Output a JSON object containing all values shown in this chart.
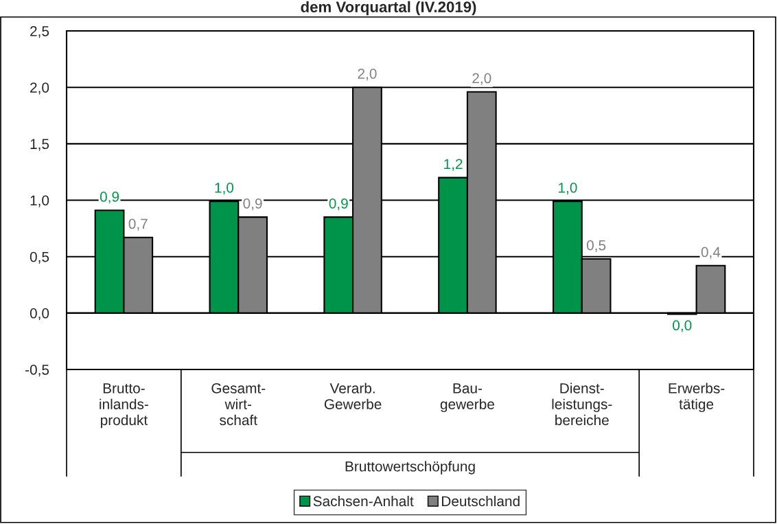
{
  "chart_data": {
    "type": "bar",
    "title": "dem Vorquartal (IV.2019)",
    "categories": [
      "Brutto-\ninlands-\nprodukt",
      "Gesamt-\nwirt-\nschaft",
      "Verarb.\nGewerbe",
      "Bau-\ngewerbe",
      "Dienst-\nleistungs-\nbereiche",
      "Erwerbs-\ntätige"
    ],
    "series": [
      {
        "name": "Sachsen-Anhalt",
        "color": "#00944a",
        "values": [
          0.91,
          0.99,
          0.85,
          1.2,
          0.99,
          -0.01
        ],
        "value_labels": [
          "0,9",
          "1,0",
          "0,9",
          "1,2",
          "1,0",
          "0,0"
        ]
      },
      {
        "name": "Deutschland",
        "color": "#808080",
        "values": [
          0.67,
          0.85,
          2.0,
          1.96,
          0.48,
          0.42
        ],
        "value_labels": [
          "0,7",
          "0,9",
          "2,0",
          "2,0",
          "0,5",
          "0,4"
        ]
      }
    ],
    "annotations": [
      "Bruttowertschöpfung"
    ],
    "ylim": [
      -0.5,
      2.5
    ],
    "yticks": [
      {
        "value": -0.5,
        "label": "-0,5"
      },
      {
        "value": 0.0,
        "label": "0,0"
      },
      {
        "value": 0.5,
        "label": "0,5"
      },
      {
        "value": 1.0,
        "label": "1,0"
      },
      {
        "value": 1.5,
        "label": "1,5"
      },
      {
        "value": 2.0,
        "label": "2,0"
      },
      {
        "value": 2.5,
        "label": "2,5"
      }
    ],
    "grid": "y",
    "legend": "bottom"
  }
}
